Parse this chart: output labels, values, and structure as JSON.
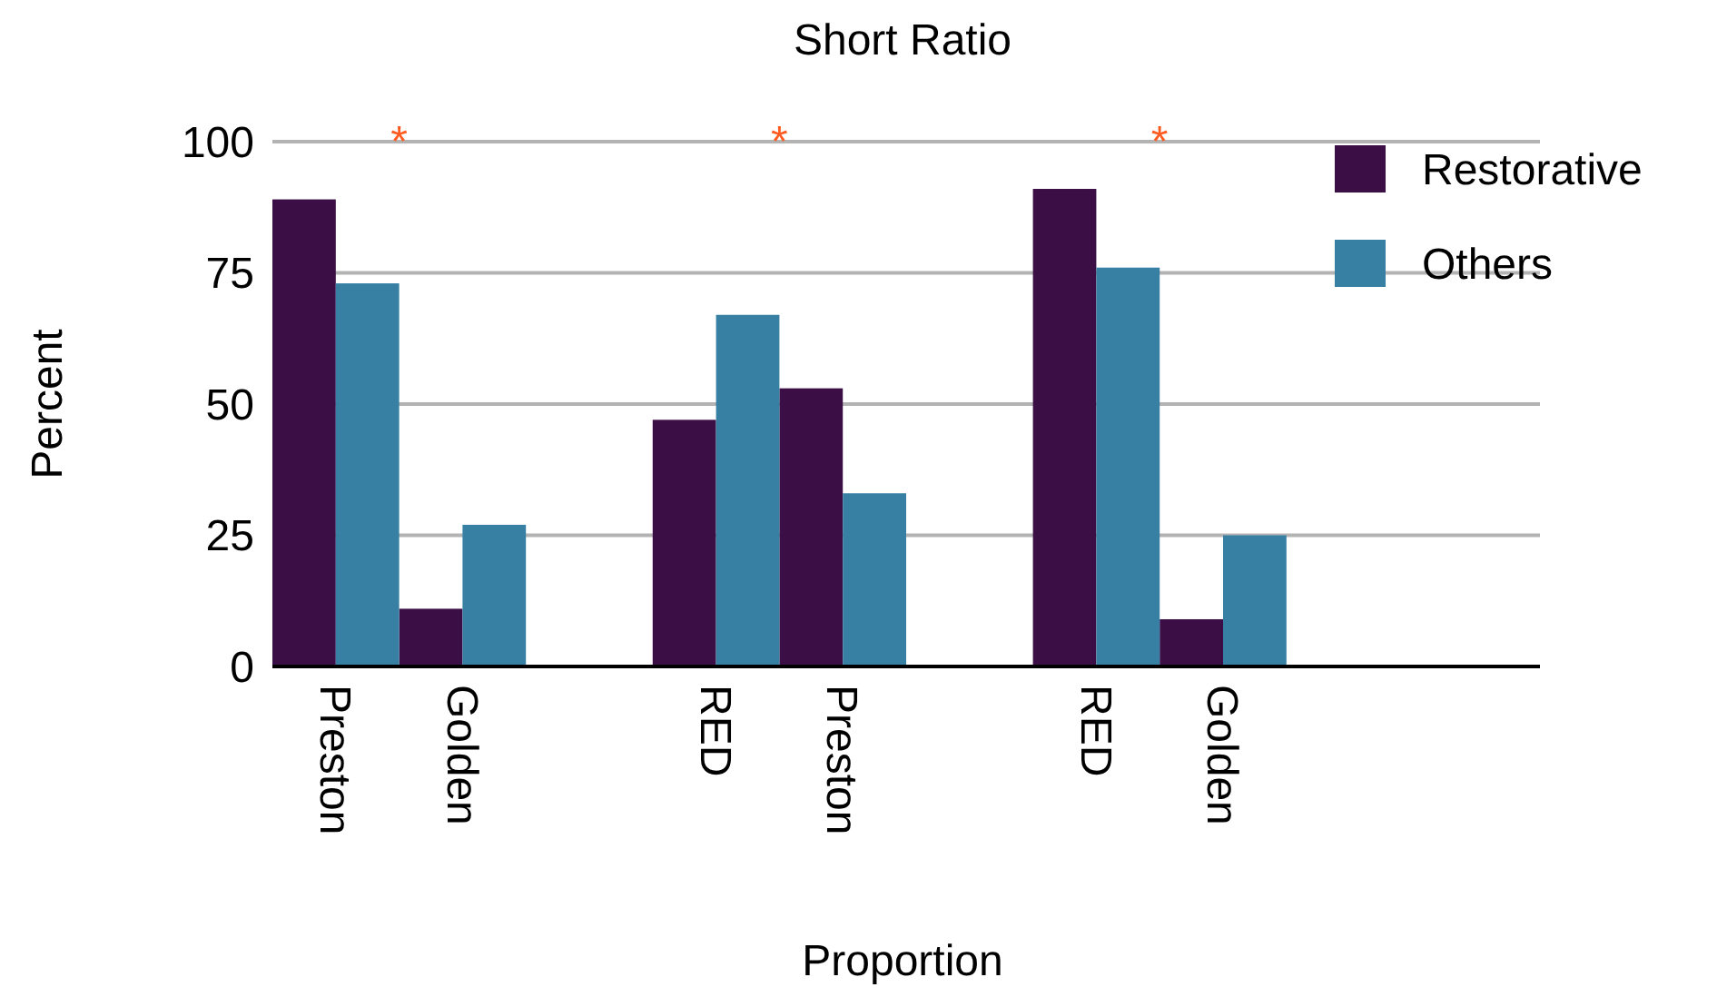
{
  "chart_data": {
    "type": "bar",
    "title": "Short Ratio",
    "xlabel": "Proportion",
    "ylabel": "Percent",
    "categories": [
      "Preston",
      "Golden",
      null,
      "RED",
      "Preston",
      null,
      "RED",
      "Golden",
      null,
      null
    ],
    "series": [
      {
        "name": "Restorative",
        "color": "#3b0f45",
        "values": [
          89,
          11,
          null,
          47,
          53,
          null,
          91,
          9,
          null,
          null
        ]
      },
      {
        "name": "Others",
        "color": "#3780a3",
        "values": [
          73,
          27,
          null,
          67,
          33,
          null,
          76,
          25,
          null,
          null
        ]
      }
    ],
    "ylim": [
      0,
      100
    ],
    "yticks": [
      0,
      25,
      50,
      75,
      100
    ],
    "grid": "y",
    "legend": "top right",
    "annotations": [
      "*",
      "*",
      "*"
    ]
  }
}
